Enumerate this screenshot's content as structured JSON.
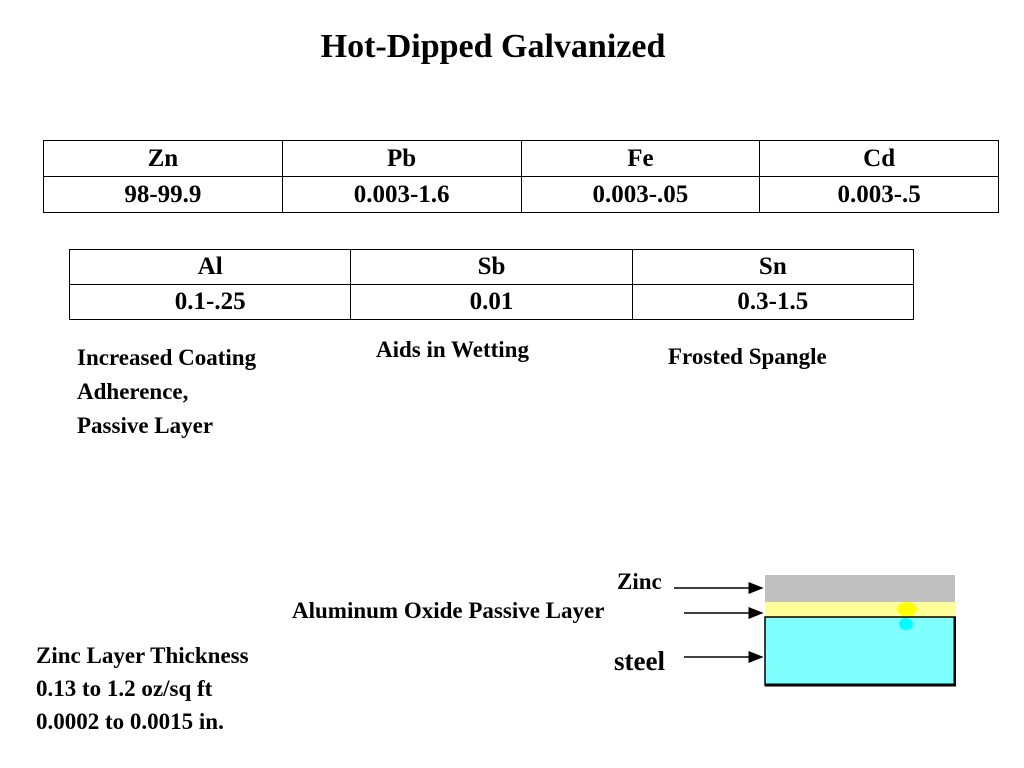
{
  "title": "Hot-Dipped Galvanized",
  "table1": {
    "headers": [
      "Zn",
      "Pb",
      "Fe",
      "Cd"
    ],
    "values": [
      "98-99.9",
      "0.003-1.6",
      "0.003-.05",
      "0.003-.5"
    ]
  },
  "table2": {
    "headers": [
      "Al",
      "Sb",
      "Sn"
    ],
    "values": [
      "0.1-.25",
      "0.01",
      "0.3-1.5"
    ]
  },
  "notes": {
    "al": [
      "Increased Coating",
      "Adherence,",
      "Passive Layer"
    ],
    "sb": "Aids in Wetting",
    "sn": "Frosted Spangle"
  },
  "diagram": {
    "labels": {
      "zinc": "Zinc",
      "oxide": "Aluminum Oxide Passive Layer",
      "steel": "steel"
    },
    "colors": {
      "zinc": "#c0c0c0",
      "oxide": "#ffff99",
      "steel": "#80ffff",
      "dot_yellow": "#ffff00",
      "dot_cyan": "#00ffff"
    }
  },
  "thickness": {
    "heading": "Zinc Layer Thickness",
    "oz": "0.13 to 1.2 oz/sq ft",
    "inches": "0.0002 to 0.0015 in."
  }
}
